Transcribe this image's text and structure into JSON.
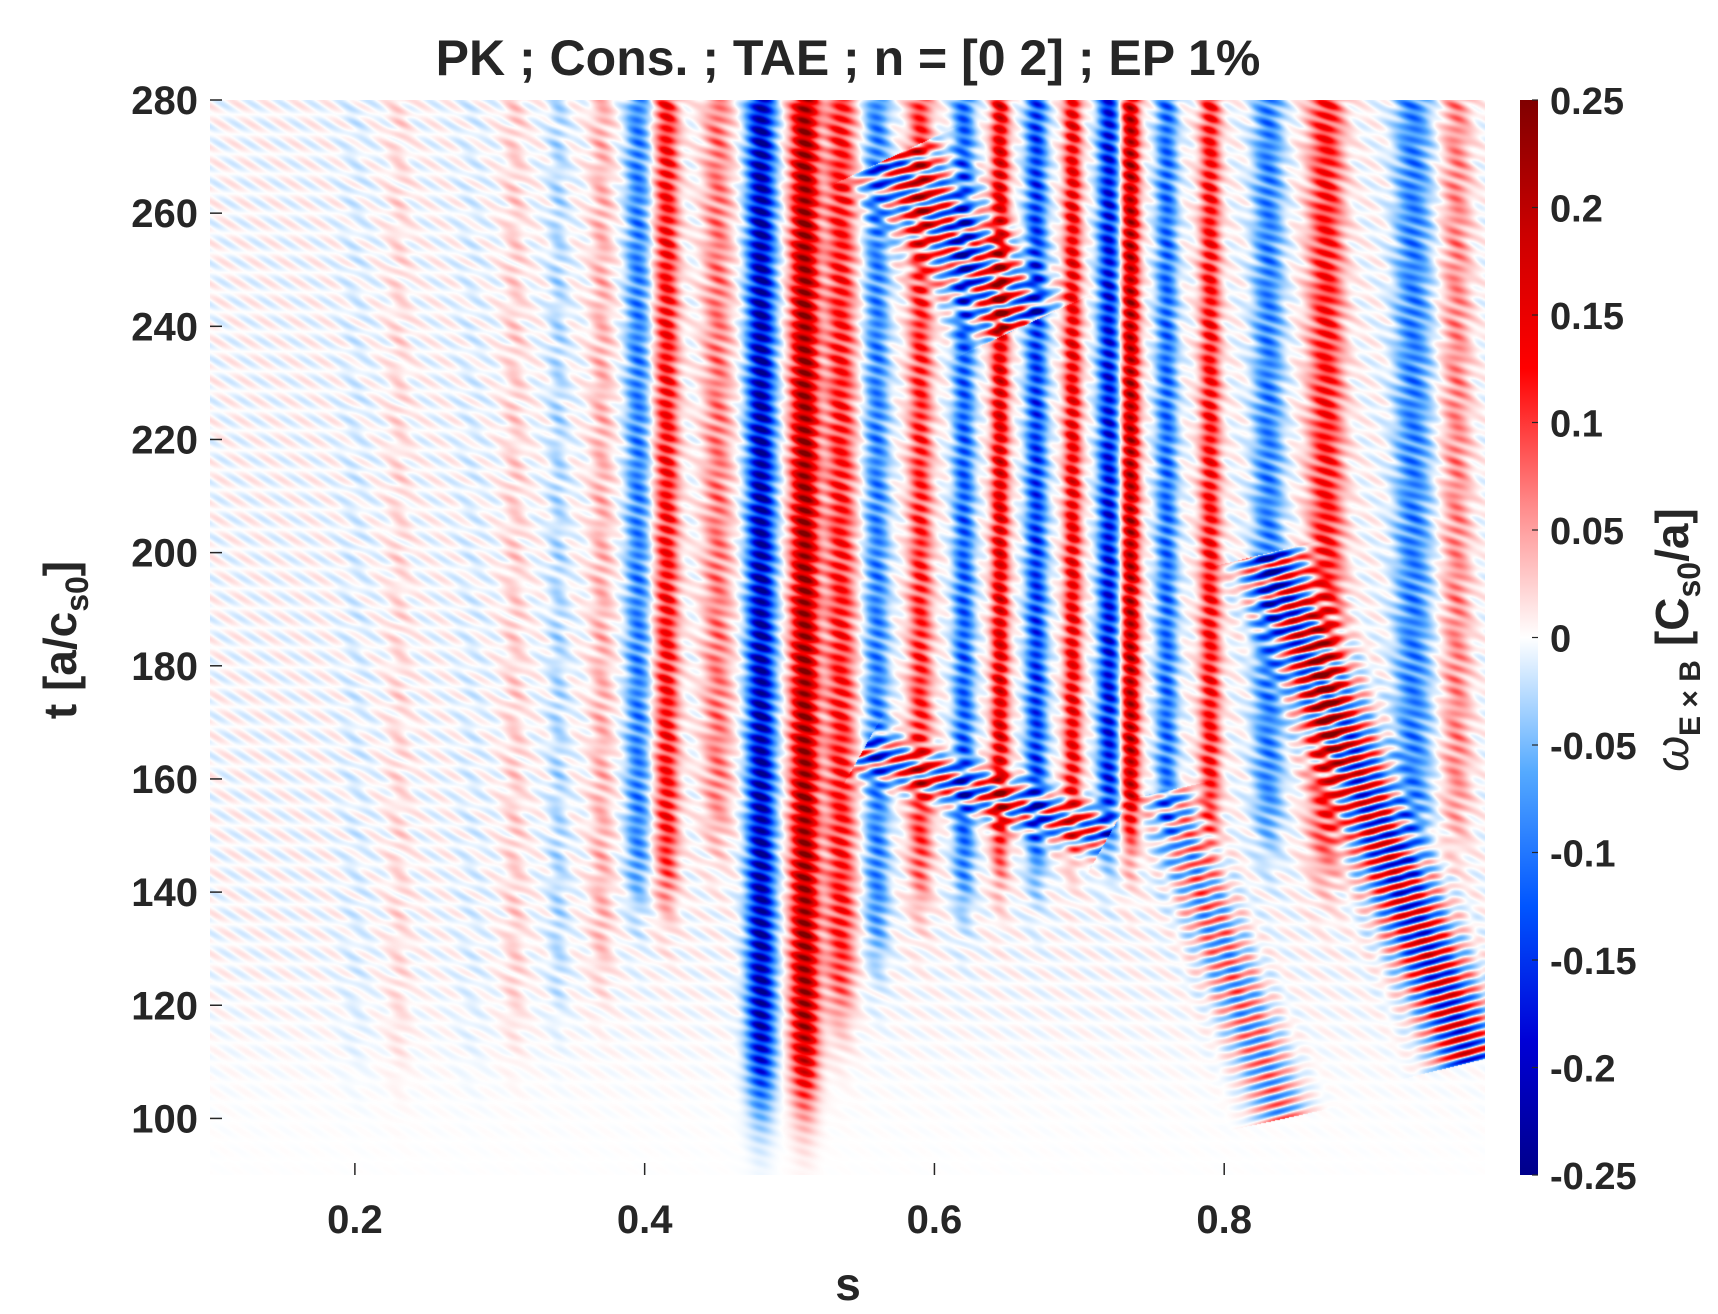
{
  "chart_data": {
    "type": "heatmap",
    "title": "PK ; Cons. ; TAE ; n = [0 2] ; EP 1%",
    "xlabel": "s",
    "ylabel": {
      "main": "t [a/c",
      "sub": "s0",
      "end": "]"
    },
    "colorbar_label": {
      "omega": "ω",
      "sub": "E × B",
      "main": "[C",
      "sub2": "s0",
      "end": "/a]"
    },
    "xlim": [
      0.1,
      0.98
    ],
    "ylim": [
      90,
      280
    ],
    "clim": [
      -0.25,
      0.25
    ],
    "x_ticks": [
      0.2,
      0.4,
      0.6,
      0.8
    ],
    "x_tick_labels": [
      "0.2",
      "0.4",
      "0.6",
      "0.8"
    ],
    "y_ticks": [
      100,
      120,
      140,
      160,
      180,
      200,
      220,
      240,
      260,
      280
    ],
    "y_tick_labels": [
      "100",
      "120",
      "140",
      "160",
      "180",
      "200",
      "220",
      "240",
      "260",
      "280"
    ],
    "colorbar_ticks": [
      -0.25,
      -0.2,
      -0.15,
      -0.1,
      -0.05,
      0,
      0.05,
      0.1,
      0.15,
      0.2,
      0.25
    ],
    "colorbar_tick_labels": [
      "-0.25",
      "-0.2",
      "-0.15",
      "-0.1",
      "-0.05",
      "0",
      "0.05",
      "0.1",
      "0.15",
      "0.2",
      "0.25"
    ],
    "colormap": [
      "#00008b",
      "#0000d6",
      "#0055ff",
      "#55aaff",
      "#ffffff",
      "#ff8888",
      "#ff0000",
      "#cc0000",
      "#800000"
    ],
    "bands": [
      {
        "s": 0.2,
        "amp": -0.012,
        "width": 0.01,
        "t_start": 110
      },
      {
        "s": 0.23,
        "amp": 0.022,
        "width": 0.008,
        "t_start": 110
      },
      {
        "s": 0.28,
        "amp": -0.01,
        "width": 0.01,
        "t_start": 110
      },
      {
        "s": 0.31,
        "amp": 0.03,
        "width": 0.008,
        "t_start": 115
      },
      {
        "s": 0.34,
        "amp": -0.035,
        "width": 0.007,
        "t_start": 120
      },
      {
        "s": 0.37,
        "amp": 0.05,
        "width": 0.008,
        "t_start": 125
      },
      {
        "s": 0.395,
        "amp": -0.12,
        "width": 0.008,
        "t_start": 140
      },
      {
        "s": 0.415,
        "amp": 0.16,
        "width": 0.008,
        "t_start": 140
      },
      {
        "s": 0.45,
        "amp": 0.09,
        "width": 0.01,
        "t_start": 150
      },
      {
        "s": 0.48,
        "amp": -0.28,
        "width": 0.009,
        "t_start": 105
      },
      {
        "s": 0.51,
        "amp": 0.28,
        "width": 0.009,
        "t_start": 105
      },
      {
        "s": 0.535,
        "amp": 0.15,
        "width": 0.01,
        "t_start": 120
      },
      {
        "s": 0.56,
        "amp": -0.12,
        "width": 0.008,
        "t_start": 130
      },
      {
        "s": 0.59,
        "amp": 0.14,
        "width": 0.008,
        "t_start": 140
      },
      {
        "s": 0.62,
        "amp": -0.15,
        "width": 0.007,
        "t_start": 140
      },
      {
        "s": 0.645,
        "amp": 0.2,
        "width": 0.006,
        "t_start": 145
      },
      {
        "s": 0.67,
        "amp": -0.18,
        "width": 0.007,
        "t_start": 145
      },
      {
        "s": 0.695,
        "amp": 0.18,
        "width": 0.006,
        "t_start": 150
      },
      {
        "s": 0.72,
        "amp": -0.22,
        "width": 0.007,
        "t_start": 150
      },
      {
        "s": 0.735,
        "amp": 0.25,
        "width": 0.006,
        "t_start": 150
      },
      {
        "s": 0.76,
        "amp": -0.14,
        "width": 0.007,
        "t_start": 150
      },
      {
        "s": 0.79,
        "amp": 0.16,
        "width": 0.007,
        "t_start": 150
      },
      {
        "s": 0.83,
        "amp": -0.12,
        "width": 0.01,
        "t_start": 150
      },
      {
        "s": 0.87,
        "amp": 0.15,
        "width": 0.012,
        "t_start": 145
      },
      {
        "s": 0.93,
        "amp": -0.12,
        "width": 0.012,
        "t_start": 145
      },
      {
        "s": 0.96,
        "amp": 0.08,
        "width": 0.01,
        "t_start": 150
      }
    ],
    "diagonal_streaks": [
      {
        "s0": 0.83,
        "t0": 200,
        "s1": 0.97,
        "t1": 110,
        "amp": 0.2,
        "width": 0.022
      },
      {
        "s0": 0.76,
        "t0": 158,
        "s1": 0.84,
        "t1": 100,
        "amp": 0.1,
        "width": 0.018
      },
      {
        "s0": 0.55,
        "t0": 165,
        "s1": 0.72,
        "t1": 150,
        "amp": 0.15,
        "width": 0.02
      },
      {
        "s0": 0.57,
        "t0": 270,
        "s1": 0.66,
        "t1": 240,
        "amp": 0.16,
        "width": 0.03
      }
    ]
  }
}
